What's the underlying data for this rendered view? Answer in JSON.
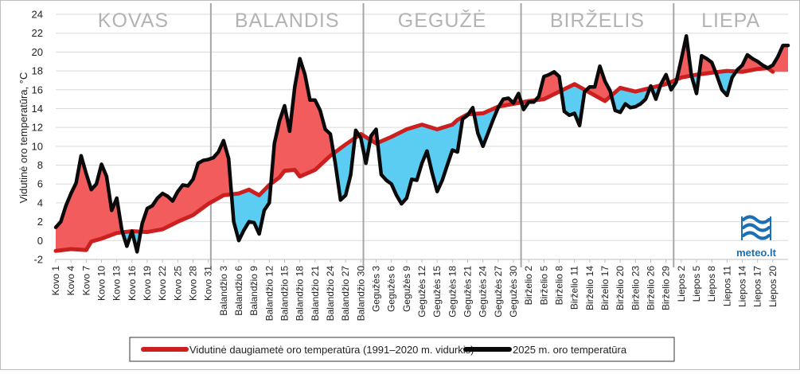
{
  "chart_data": {
    "type": "line",
    "title": "",
    "ylabel": "Vidutinė oro temperatūra, °C",
    "xlabel": "",
    "ylim": [
      -2,
      24
    ],
    "yticks": [
      -2,
      0,
      2,
      4,
      6,
      8,
      10,
      12,
      14,
      16,
      18,
      20,
      22,
      24
    ],
    "grid": "horizontal",
    "legend_position": "bottom",
    "months": [
      {
        "label": "KOVAS",
        "start_day": 1,
        "end_day": 31
      },
      {
        "label": "BALANDIS",
        "start_day": 32,
        "end_day": 61
      },
      {
        "label": "GEGUŽĖ",
        "start_day": 62,
        "end_day": 92
      },
      {
        "label": "BIRŽELIS",
        "start_day": 93,
        "end_day": 122
      },
      {
        "label": "LIEPA",
        "start_day": 123,
        "end_day": 142
      }
    ],
    "month_boundaries_after_day": [
      31,
      61,
      92,
      122
    ],
    "x_tick_labels": [
      {
        "day": 1,
        "label": "Kovo 1"
      },
      {
        "day": 4,
        "label": "Kovo 4"
      },
      {
        "day": 7,
        "label": "Kovo 7"
      },
      {
        "day": 10,
        "label": "Kovo 10"
      },
      {
        "day": 13,
        "label": "Kovo 13"
      },
      {
        "day": 16,
        "label": "Kovo 16"
      },
      {
        "day": 19,
        "label": "Kovo 19"
      },
      {
        "day": 22,
        "label": "Kovo 22"
      },
      {
        "day": 25,
        "label": "Kovo 25"
      },
      {
        "day": 28,
        "label": "Kovo 28"
      },
      {
        "day": 31,
        "label": "Kovo 31"
      },
      {
        "day": 34,
        "label": "Balandžio 3"
      },
      {
        "day": 37,
        "label": "Balandžio 6"
      },
      {
        "day": 40,
        "label": "Balandžio 9"
      },
      {
        "day": 43,
        "label": "Balandžio 12"
      },
      {
        "day": 46,
        "label": "Balandžio 15"
      },
      {
        "day": 49,
        "label": "Balandžio 18"
      },
      {
        "day": 52,
        "label": "Balandžio 21"
      },
      {
        "day": 55,
        "label": "Balandžio 24"
      },
      {
        "day": 58,
        "label": "Balandžio 27"
      },
      {
        "day": 61,
        "label": "Balandžio 30"
      },
      {
        "day": 64,
        "label": "Gegužės 3"
      },
      {
        "day": 67,
        "label": "Gegužės 6"
      },
      {
        "day": 70,
        "label": "Gegužės 9"
      },
      {
        "day": 73,
        "label": "Gegužės 12"
      },
      {
        "day": 76,
        "label": "Gegužės 15"
      },
      {
        "day": 79,
        "label": "Gegužės 18"
      },
      {
        "day": 82,
        "label": "Gegužės 21"
      },
      {
        "day": 85,
        "label": "Gegužės 24"
      },
      {
        "day": 88,
        "label": "Gegužės 27"
      },
      {
        "day": 91,
        "label": "Gegužės 30"
      },
      {
        "day": 94,
        "label": "Birželio 2"
      },
      {
        "day": 97,
        "label": "Birželio 5"
      },
      {
        "day": 100,
        "label": "Birželio 8"
      },
      {
        "day": 103,
        "label": "Birželio 11"
      },
      {
        "day": 106,
        "label": "Birželio 14"
      },
      {
        "day": 109,
        "label": "Birželio 17"
      },
      {
        "day": 112,
        "label": "Birželio 20"
      },
      {
        "day": 115,
        "label": "Birželio 23"
      },
      {
        "day": 118,
        "label": "Birželio 26"
      },
      {
        "day": 121,
        "label": "Birželio 29"
      },
      {
        "day": 124,
        "label": "Liepos 2"
      },
      {
        "day": 127,
        "label": "Liepos 5"
      },
      {
        "day": 130,
        "label": "Liepos 8"
      },
      {
        "day": 133,
        "label": "Liepos 11"
      },
      {
        "day": 136,
        "label": "Liepos 14"
      },
      {
        "day": 139,
        "label": "Liepos 17"
      },
      {
        "day": 142,
        "label": "Liepos 20"
      }
    ],
    "series": [
      {
        "name": "Vidutinė daugiametė oro temperatūra (1991–2020 m. vidurkis)",
        "color": "#cc1f1f",
        "points": [
          [
            1,
            -1.1
          ],
          [
            4,
            -0.9
          ],
          [
            7,
            -1
          ],
          [
            8,
            -0.1
          ],
          [
            10,
            0.2
          ],
          [
            13,
            0.8
          ],
          [
            16,
            1
          ],
          [
            19,
            0.9
          ],
          [
            22,
            1.2
          ],
          [
            25,
            2
          ],
          [
            28,
            2.7
          ],
          [
            31,
            3.9
          ],
          [
            34,
            4.8
          ],
          [
            37,
            5
          ],
          [
            39,
            5.4
          ],
          [
            41,
            4.8
          ],
          [
            43,
            5.9
          ],
          [
            45,
            6.7
          ],
          [
            46,
            7.4
          ],
          [
            48,
            7.5
          ],
          [
            49,
            6.8
          ],
          [
            52,
            7.5
          ],
          [
            55,
            9
          ],
          [
            58,
            10.2
          ],
          [
            61,
            11.3
          ],
          [
            64,
            10.3
          ],
          [
            67,
            11
          ],
          [
            70,
            11.8
          ],
          [
            73,
            12.3
          ],
          [
            76,
            11.8
          ],
          [
            79,
            12.3
          ],
          [
            80,
            12.8
          ],
          [
            82,
            13.4
          ],
          [
            85,
            13.5
          ],
          [
            88,
            14.2
          ],
          [
            91,
            14.5
          ],
          [
            94,
            14.8
          ],
          [
            97,
            15
          ],
          [
            100,
            15.8
          ],
          [
            103,
            16.6
          ],
          [
            106,
            15.7
          ],
          [
            109,
            14.8
          ],
          [
            112,
            16.2
          ],
          [
            115,
            15.8
          ],
          [
            118,
            16.2
          ],
          [
            121,
            16.6
          ],
          [
            124,
            17.3
          ],
          [
            127,
            17.6
          ],
          [
            130,
            17.8
          ],
          [
            133,
            18
          ],
          [
            136,
            17.9
          ],
          [
            139,
            18.2
          ],
          [
            141,
            18.3
          ],
          [
            142,
            17.9
          ]
        ]
      },
      {
        "name": "2025 m. oro temperatūra",
        "color": "#0a0a0a",
        "points": [
          [
            1,
            1.4
          ],
          [
            2,
            2
          ],
          [
            3,
            3.7
          ],
          [
            4,
            5
          ],
          [
            5,
            6.1
          ],
          [
            6,
            9
          ],
          [
            7,
            7.1
          ],
          [
            8,
            5.4
          ],
          [
            9,
            6
          ],
          [
            10,
            8.1
          ],
          [
            11,
            6.8
          ],
          [
            12,
            3.2
          ],
          [
            13,
            4.5
          ],
          [
            14,
            1.1
          ],
          [
            15,
            -0.6
          ],
          [
            16,
            1
          ],
          [
            17,
            -1.2
          ],
          [
            18,
            1.8
          ],
          [
            19,
            3.4
          ],
          [
            20,
            3.7
          ],
          [
            21,
            4.5
          ],
          [
            22,
            5
          ],
          [
            23,
            4.7
          ],
          [
            24,
            4.2
          ],
          [
            25,
            5.2
          ],
          [
            26,
            5.9
          ],
          [
            27,
            5.8
          ],
          [
            28,
            6.5
          ],
          [
            29,
            8.2
          ],
          [
            30,
            8.5
          ],
          [
            31,
            8.6
          ],
          [
            32,
            8.8
          ],
          [
            33,
            9.4
          ],
          [
            34,
            10.6
          ],
          [
            35,
            8.7
          ],
          [
            36,
            2
          ],
          [
            37,
            0
          ],
          [
            38,
            1.1
          ],
          [
            39,
            2
          ],
          [
            40,
            1.9
          ],
          [
            41,
            0.7
          ],
          [
            42,
            3.2
          ],
          [
            43,
            4
          ],
          [
            44,
            10.3
          ],
          [
            45,
            12.7
          ],
          [
            46,
            14.3
          ],
          [
            47,
            11.6
          ],
          [
            48,
            16.3
          ],
          [
            49,
            19.3
          ],
          [
            50,
            17.6
          ],
          [
            51,
            14.9
          ],
          [
            52,
            14.9
          ],
          [
            53,
            13.8
          ],
          [
            54,
            11.8
          ],
          [
            55,
            11.3
          ],
          [
            56,
            8.1
          ],
          [
            57,
            4.3
          ],
          [
            58,
            4.8
          ],
          [
            59,
            7
          ],
          [
            60,
            11.7
          ],
          [
            61,
            10.9
          ],
          [
            62,
            8.2
          ],
          [
            63,
            11.1
          ],
          [
            64,
            11.8
          ],
          [
            65,
            7
          ],
          [
            66,
            6.4
          ],
          [
            67,
            6
          ],
          [
            68,
            4.8
          ],
          [
            69,
            3.9
          ],
          [
            70,
            4.5
          ],
          [
            71,
            6.5
          ],
          [
            72,
            6.4
          ],
          [
            73,
            8.2
          ],
          [
            74,
            9.5
          ],
          [
            75,
            7.2
          ],
          [
            76,
            5.2
          ],
          [
            77,
            6.4
          ],
          [
            78,
            8
          ],
          [
            79,
            9.6
          ],
          [
            80,
            9.4
          ],
          [
            81,
            12.9
          ],
          [
            82,
            13.3
          ],
          [
            83,
            14.1
          ],
          [
            84,
            11.4
          ],
          [
            85,
            10
          ],
          [
            86,
            11.4
          ],
          [
            87,
            12.8
          ],
          [
            88,
            14.1
          ],
          [
            89,
            15
          ],
          [
            90,
            15.1
          ],
          [
            91,
            14.6
          ],
          [
            92,
            15.6
          ],
          [
            93,
            13.9
          ],
          [
            94,
            14.7
          ],
          [
            95,
            14.7
          ],
          [
            96,
            15.3
          ],
          [
            97,
            17.4
          ],
          [
            98,
            17.6
          ],
          [
            99,
            17.9
          ],
          [
            100,
            17.4
          ],
          [
            101,
            13.7
          ],
          [
            102,
            13.3
          ],
          [
            103,
            13.5
          ],
          [
            104,
            12.2
          ],
          [
            105,
            15.8
          ],
          [
            106,
            16.3
          ],
          [
            107,
            16.3
          ],
          [
            108,
            18.5
          ],
          [
            109,
            16.9
          ],
          [
            110,
            15.9
          ],
          [
            111,
            13.8
          ],
          [
            112,
            13.6
          ],
          [
            113,
            14.5
          ],
          [
            114,
            14.1
          ],
          [
            115,
            14.2
          ],
          [
            116,
            14.5
          ],
          [
            117,
            15
          ],
          [
            118,
            16.4
          ],
          [
            119,
            15
          ],
          [
            120,
            16.6
          ],
          [
            121,
            17.6
          ],
          [
            122,
            16
          ],
          [
            123,
            16.8
          ],
          [
            124,
            19.2
          ],
          [
            125,
            21.7
          ],
          [
            126,
            17.5
          ],
          [
            127,
            15.6
          ],
          [
            128,
            19.6
          ],
          [
            129,
            19.3
          ],
          [
            130,
            18.9
          ],
          [
            131,
            17.5
          ],
          [
            132,
            16
          ],
          [
            133,
            15.4
          ],
          [
            134,
            17.3
          ],
          [
            135,
            18.1
          ],
          [
            136,
            18.6
          ],
          [
            137,
            19.7
          ],
          [
            138,
            19.3
          ],
          [
            139,
            19
          ],
          [
            140,
            18.6
          ],
          [
            141,
            18.3
          ],
          [
            142,
            18.6
          ],
          [
            143,
            19.5
          ],
          [
            144,
            20.7
          ],
          [
            145,
            20.7
          ]
        ]
      }
    ],
    "fill_colors": {
      "above_normal": "#f25c5c",
      "below_normal": "#5ccdf2"
    }
  },
  "logo": {
    "text": "meteo.lt",
    "color": "#1a6fb5"
  }
}
